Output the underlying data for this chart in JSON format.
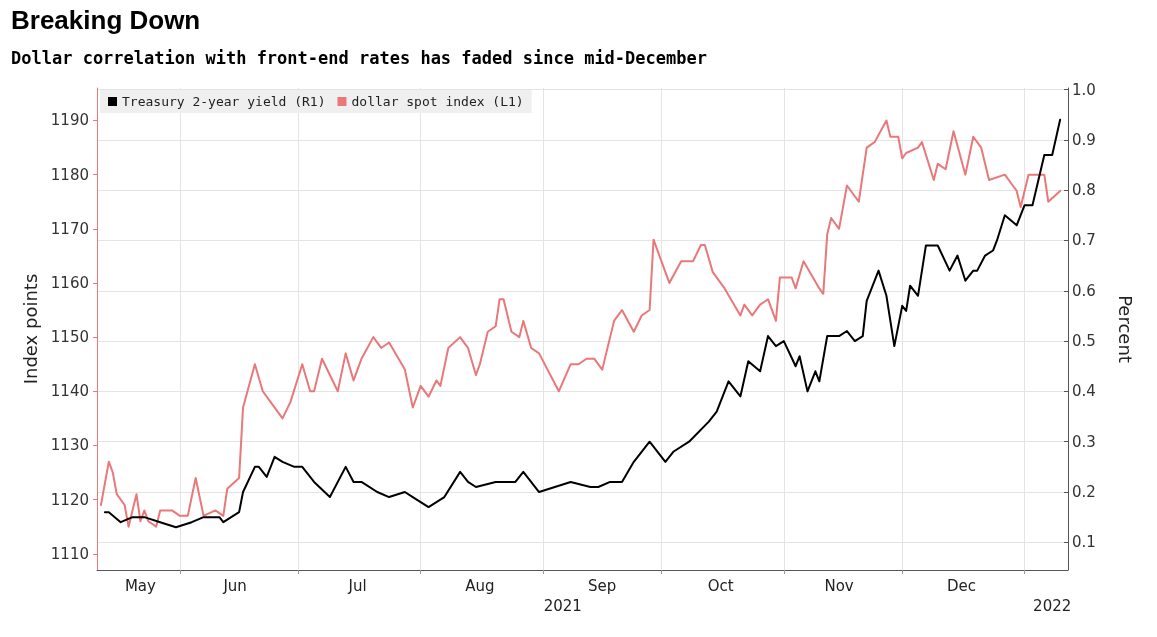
{
  "chart_data": {
    "type": "line",
    "title": "Breaking Down",
    "subtitle": "Dollar correlation with front-end rates has faded since mid-December",
    "ylabel": "Index points",
    "y2label": "Percent",
    "xlim": [
      "2021-05-11",
      "2022-01-12"
    ],
    "xticks": [
      {
        "value": "2021-05-22",
        "label": "May"
      },
      {
        "value": "2021-06-01",
        "label": null
      },
      {
        "value": "2021-06-15",
        "label": "Jun"
      },
      {
        "value": "2021-07-01",
        "label": null
      },
      {
        "value": "2021-07-16",
        "label": "Jul"
      },
      {
        "value": "2021-08-01",
        "label": null
      },
      {
        "value": "2021-08-16",
        "label": "Aug"
      },
      {
        "value": "2021-09-01",
        "label": null
      },
      {
        "value": "2021-09-16",
        "label": "Sep"
      },
      {
        "value": "2021-10-01",
        "label": null
      },
      {
        "value": "2021-10-16",
        "label": "Oct"
      },
      {
        "value": "2021-11-01",
        "label": null
      },
      {
        "value": "2021-11-15",
        "label": "Nov"
      },
      {
        "value": "2021-12-01",
        "label": null
      },
      {
        "value": "2021-12-16",
        "label": "Dec"
      },
      {
        "value": "2022-01-01",
        "label": null
      }
    ],
    "x2lim": [
      "2021-05-11",
      "2022-01-12"
    ],
    "x2ticks": [
      {
        "value": "2021-09-06",
        "label": "2021"
      },
      {
        "value": "2022-01-08",
        "label": "2022"
      }
    ],
    "ylim": [
      1107,
      1196
    ],
    "yticks": [
      1110,
      1120,
      1130,
      1140,
      1150,
      1160,
      1170,
      1180,
      1190
    ],
    "y2lim": [
      0.045,
      1.003
    ],
    "y2ticks": [
      {
        "value": 0.1,
        "label": "0.1"
      },
      {
        "value": 0.2,
        "label": "0.2"
      },
      {
        "value": 0.3,
        "label": "0.3"
      },
      {
        "value": 0.4,
        "label": "0.4"
      },
      {
        "value": 0.5,
        "label": "0.5"
      },
      {
        "value": 0.6,
        "label": "0.6"
      },
      {
        "value": 0.7,
        "label": "0.7"
      },
      {
        "value": 0.8,
        "label": "0.8"
      },
      {
        "value": 0.9,
        "label": "0.9"
      },
      {
        "value": 1.0,
        "label": "1.0"
      }
    ],
    "grid": true,
    "legend": "top left",
    "marker": "none",
    "line_style": "solid",
    "series": [
      {
        "name": "Treasury 2-year yield (R1)",
        "color": "#000000",
        "axis": "y2",
        "x": [
          "2021-05-13",
          "2021-05-14",
          "2021-05-17",
          "2021-05-20",
          "2021-05-23",
          "2021-05-27",
          "2021-05-31",
          "2021-06-04",
          "2021-06-07",
          "2021-06-11",
          "2021-06-12",
          "2021-06-16",
          "2021-06-17",
          "2021-06-20",
          "2021-06-21",
          "2021-06-23",
          "2021-06-25",
          "2021-06-27",
          "2021-06-30",
          "2021-07-02",
          "2021-07-05",
          "2021-07-09",
          "2021-07-13",
          "2021-07-15",
          "2021-07-17",
          "2021-07-21",
          "2021-07-24",
          "2021-07-28",
          "2021-07-30",
          "2021-08-03",
          "2021-08-07",
          "2021-08-11",
          "2021-08-13",
          "2021-08-15",
          "2021-08-20",
          "2021-08-25",
          "2021-08-27",
          "2021-08-31",
          "2021-09-04",
          "2021-09-08",
          "2021-09-13",
          "2021-09-15",
          "2021-09-18",
          "2021-09-21",
          "2021-09-24",
          "2021-09-28",
          "2021-10-02",
          "2021-10-04",
          "2021-10-08",
          "2021-10-13",
          "2021-10-15",
          "2021-10-18",
          "2021-10-21",
          "2021-10-23",
          "2021-10-26",
          "2021-10-28",
          "2021-10-30",
          "2021-11-01",
          "2021-11-04",
          "2021-11-05",
          "2021-11-07",
          "2021-11-09",
          "2021-11-10",
          "2021-11-12",
          "2021-11-15",
          "2021-11-17",
          "2021-11-19",
          "2021-11-21",
          "2021-11-22",
          "2021-11-25",
          "2021-11-27",
          "2021-11-29",
          "2021-12-01",
          "2021-12-02",
          "2021-12-03",
          "2021-12-05",
          "2021-12-07",
          "2021-12-10",
          "2021-12-13",
          "2021-12-15",
          "2021-12-17",
          "2021-12-19",
          "2021-12-20",
          "2021-12-22",
          "2021-12-24",
          "2021-12-25",
          "2021-12-27",
          "2021-12-30",
          "2022-01-01",
          "2022-01-03",
          "2022-01-06",
          "2022-01-08",
          "2022-01-10"
        ],
        "values": [
          0.16,
          0.16,
          0.14,
          0.15,
          0.15,
          0.14,
          0.13,
          0.14,
          0.15,
          0.15,
          0.14,
          0.16,
          0.2,
          0.25,
          0.25,
          0.23,
          0.27,
          0.26,
          0.25,
          0.25,
          0.22,
          0.19,
          0.25,
          0.22,
          0.22,
          0.2,
          0.19,
          0.2,
          0.19,
          0.17,
          0.19,
          0.24,
          0.22,
          0.21,
          0.22,
          0.22,
          0.24,
          0.2,
          0.21,
          0.22,
          0.21,
          0.21,
          0.22,
          0.22,
          0.26,
          0.3,
          0.26,
          0.28,
          0.3,
          0.34,
          0.36,
          0.42,
          0.39,
          0.46,
          0.44,
          0.51,
          0.49,
          0.5,
          0.45,
          0.47,
          0.4,
          0.44,
          0.42,
          0.51,
          0.51,
          0.52,
          0.5,
          0.51,
          0.58,
          0.64,
          0.59,
          0.49,
          0.57,
          0.56,
          0.61,
          0.59,
          0.69,
          0.69,
          0.64,
          0.67,
          0.62,
          0.64,
          0.64,
          0.67,
          0.68,
          0.7,
          0.75,
          0.73,
          0.77,
          0.77,
          0.87,
          0.87,
          0.94
        ]
      },
      {
        "name": "dollar spot index (L1)",
        "color": "#e8787a",
        "x": [
          "2021-05-12",
          "2021-05-14",
          "2021-05-15",
          "2021-05-16",
          "2021-05-18",
          "2021-05-19",
          "2021-05-21",
          "2021-05-22",
          "2021-05-23",
          "2021-05-24",
          "2021-05-26",
          "2021-05-27",
          "2021-05-30",
          "2021-06-01",
          "2021-06-03",
          "2021-06-05",
          "2021-06-07",
          "2021-06-10",
          "2021-06-12",
          "2021-06-13",
          "2021-06-16",
          "2021-06-17",
          "2021-06-20",
          "2021-06-22",
          "2021-06-24",
          "2021-06-27",
          "2021-06-29",
          "2021-07-02",
          "2021-07-04",
          "2021-07-05",
          "2021-07-07",
          "2021-07-11",
          "2021-07-13",
          "2021-07-15",
          "2021-07-17",
          "2021-07-20",
          "2021-07-22",
          "2021-07-24",
          "2021-07-28",
          "2021-07-30",
          "2021-08-01",
          "2021-08-03",
          "2021-08-05",
          "2021-08-06",
          "2021-08-08",
          "2021-08-11",
          "2021-08-12",
          "2021-08-13",
          "2021-08-15",
          "2021-08-16",
          "2021-08-18",
          "2021-08-20",
          "2021-08-21",
          "2021-08-22",
          "2021-08-24",
          "2021-08-26",
          "2021-08-27",
          "2021-08-29",
          "2021-08-31",
          "2021-09-05",
          "2021-09-08",
          "2021-09-10",
          "2021-09-12",
          "2021-09-14",
          "2021-09-16",
          "2021-09-19",
          "2021-09-21",
          "2021-09-24",
          "2021-09-26",
          "2021-09-28",
          "2021-09-29",
          "2021-10-03",
          "2021-10-06",
          "2021-10-09",
          "2021-10-11",
          "2021-10-12",
          "2021-10-14",
          "2021-10-17",
          "2021-10-21",
          "2021-10-22",
          "2021-10-24",
          "2021-10-26",
          "2021-10-28",
          "2021-10-30",
          "2021-10-31",
          "2021-11-03",
          "2021-11-04",
          "2021-11-06",
          "2021-11-10",
          "2021-11-11",
          "2021-11-12",
          "2021-11-13",
          "2021-11-15",
          "2021-11-17",
          "2021-11-20",
          "2021-11-22",
          "2021-11-24",
          "2021-11-27",
          "2021-11-28",
          "2021-11-30",
          "2021-12-01",
          "2021-12-02",
          "2021-12-05",
          "2021-12-06",
          "2021-12-09",
          "2021-12-10",
          "2021-12-12",
          "2021-12-14",
          "2021-12-17",
          "2021-12-19",
          "2021-12-21",
          "2021-12-23",
          "2021-12-27",
          "2021-12-29",
          "2021-12-30",
          "2021-12-31",
          "2022-01-02",
          "2022-01-04",
          "2022-01-06",
          "2022-01-07",
          "2022-01-10"
        ],
        "values": [
          1119,
          1127,
          1125,
          1121,
          1119,
          1115,
          1121,
          1116,
          1118,
          1116,
          1115,
          1118,
          1118,
          1117,
          1117,
          1124,
          1117,
          1118,
          1117,
          1122,
          1124,
          1137,
          1145,
          1140,
          1138,
          1135,
          1138,
          1145,
          1140,
          1140,
          1146,
          1140,
          1147,
          1142,
          1146,
          1150,
          1148,
          1149,
          1144,
          1137,
          1141,
          1139,
          1142,
          1141,
          1148,
          1150,
          1149,
          1148,
          1143,
          1145,
          1151,
          1152,
          1157,
          1157,
          1151,
          1150,
          1153,
          1148,
          1147,
          1140,
          1145,
          1145,
          1146,
          1146,
          1144,
          1153,
          1155,
          1151,
          1154,
          1155,
          1168,
          1160,
          1164,
          1164,
          1167,
          1167,
          1162,
          1159,
          1154,
          1156,
          1154,
          1156,
          1157,
          1153,
          1161,
          1161,
          1159,
          1164,
          1159,
          1158,
          1169,
          1172,
          1170,
          1178,
          1175,
          1185,
          1186,
          1190,
          1187,
          1187,
          1183,
          1184,
          1185,
          1186,
          1179,
          1182,
          1181,
          1188,
          1180,
          1187,
          1185,
          1179,
          1180,
          1178,
          1177,
          1174,
          1180,
          1180,
          1180,
          1175,
          1177
        ]
      }
    ]
  }
}
